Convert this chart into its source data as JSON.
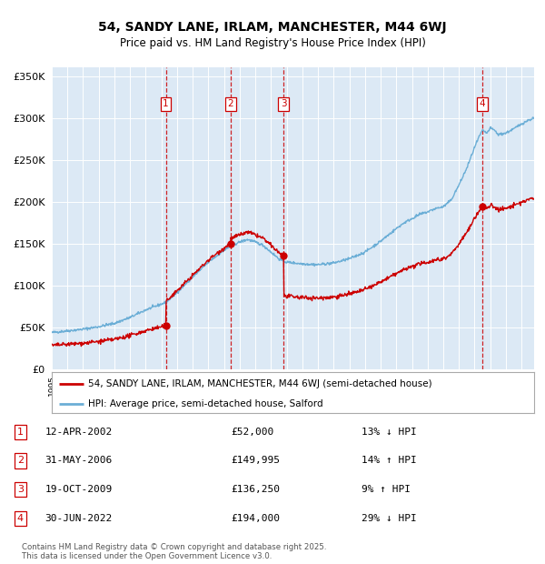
{
  "title": "54, SANDY LANE, IRLAM, MANCHESTER, M44 6WJ",
  "subtitle": "Price paid vs. HM Land Registry's House Price Index (HPI)",
  "legend_line1": "54, SANDY LANE, IRLAM, MANCHESTER, M44 6WJ (semi-detached house)",
  "legend_line2": "HPI: Average price, semi-detached house, Salford",
  "footer1": "Contains HM Land Registry data © Crown copyright and database right 2025.",
  "footer2": "This data is licensed under the Open Government Licence v3.0.",
  "transactions": [
    {
      "num": 1,
      "date": "12-APR-2002",
      "price": 52000,
      "price_str": "£52,000",
      "hpi_pct": "13%",
      "dir": "↓"
    },
    {
      "num": 2,
      "date": "31-MAY-2006",
      "price": 149995,
      "price_str": "£149,995",
      "hpi_pct": "14%",
      "dir": "↑"
    },
    {
      "num": 3,
      "date": "19-OCT-2009",
      "price": 136250,
      "price_str": "£136,250",
      "hpi_pct": "9%",
      "dir": "↑"
    },
    {
      "num": 4,
      "date": "30-JUN-2022",
      "price": 194000,
      "price_str": "£194,000",
      "hpi_pct": "29%",
      "dir": "↓"
    }
  ],
  "transaction_years": [
    2002.28,
    2006.42,
    2009.8,
    2022.5
  ],
  "transaction_prices": [
    52000,
    149995,
    136250,
    194000
  ],
  "hpi_color": "#6baed6",
  "price_color": "#cc0000",
  "dashed_color": "#cc0000",
  "plot_bg": "#dce9f5",
  "grid_color": "#ffffff",
  "ylim": [
    0,
    360000
  ],
  "yticks": [
    0,
    50000,
    100000,
    150000,
    200000,
    250000,
    300000,
    350000
  ],
  "ytick_labels": [
    "£0",
    "£50K",
    "£100K",
    "£150K",
    "£200K",
    "£250K",
    "£300K",
    "£350K"
  ],
  "xlim_start": 1995.0,
  "xlim_end": 2025.8,
  "hpi_anchors_x": [
    1995.0,
    1996.0,
    1997.0,
    1998.0,
    1999.0,
    2000.0,
    2001.0,
    2002.0,
    2002.3,
    2003.0,
    2004.0,
    2005.0,
    2006.0,
    2006.5,
    2007.0,
    2007.5,
    2008.0,
    2008.5,
    2009.0,
    2009.5,
    2009.8,
    2010.0,
    2010.5,
    2011.0,
    2012.0,
    2013.0,
    2014.0,
    2014.5,
    2015.0,
    2016.0,
    2017.0,
    2017.5,
    2018.0,
    2018.5,
    2019.0,
    2019.5,
    2020.0,
    2020.5,
    2021.0,
    2021.5,
    2022.0,
    2022.3,
    2022.5,
    2022.8,
    2023.0,
    2023.3,
    2023.5,
    2024.0,
    2024.5,
    2025.0,
    2025.5,
    2025.8
  ],
  "hpi_anchors_y": [
    44000,
    46000,
    48000,
    51000,
    55000,
    62000,
    71000,
    78000,
    80000,
    92000,
    110000,
    128000,
    142000,
    148000,
    152000,
    155000,
    152000,
    148000,
    140000,
    132000,
    129000,
    128000,
    127000,
    126000,
    125000,
    127000,
    132000,
    136000,
    140000,
    153000,
    168000,
    175000,
    180000,
    185000,
    188000,
    192000,
    194000,
    202000,
    220000,
    240000,
    265000,
    278000,
    285000,
    282000,
    288000,
    285000,
    280000,
    282000,
    287000,
    293000,
    298000,
    300000
  ]
}
